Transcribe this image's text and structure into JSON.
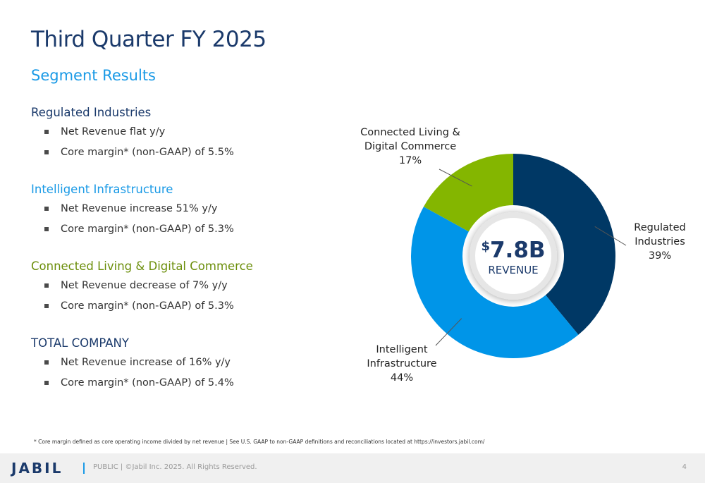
{
  "header": {
    "title": "Third Quarter FY 2025",
    "subtitle": "Segment Results"
  },
  "segments": [
    {
      "name": "Regulated Industries",
      "color": "#1b3a6b",
      "bullets": [
        "Net Revenue flat y/y",
        "Core margin* (non-GAAP) of 5.5%"
      ]
    },
    {
      "name": "Intelligent Infrastructure",
      "color": "#1a9ae6",
      "bullets": [
        "Net Revenue increase 51% y/y",
        "Core margin* (non-GAAP) of 5.3%"
      ]
    },
    {
      "name": "Connected Living & Digital Commerce",
      "color": "#6b8e0a",
      "bullets": [
        "Net Revenue decrease of 7% y/y",
        "Core margin* (non-GAAP) of 5.3%"
      ]
    },
    {
      "name": "TOTAL COMPANY",
      "color": "#1b3a6b",
      "bullets": [
        "Net Revenue increase of 16% y/y",
        "Core margin* (non-GAAP) of 5.4%"
      ]
    }
  ],
  "chart_data": {
    "type": "pie",
    "title": "",
    "center_label": {
      "currency": "$",
      "value": "7.8B",
      "caption": "REVENUE"
    },
    "slices": [
      {
        "label_lines": [
          "Regulated",
          "Industries"
        ],
        "value": 39,
        "value_label": "39%",
        "color": "#003865"
      },
      {
        "label_lines": [
          "Intelligent",
          "Infrastructure"
        ],
        "value": 44,
        "value_label": "44%",
        "color": "#0095e8"
      },
      {
        "label_lines": [
          "Connected Living &",
          "Digital Commerce"
        ],
        "value": 17,
        "value_label": "17%",
        "color": "#84b600"
      }
    ]
  },
  "footnote": "* Core margin defined as core operating income divided by net revenue  |   See U.S. GAAP to non-GAAP definitions and  reconciliations located at https://investors.jabil.com/",
  "footer": {
    "logo": "JABIL",
    "text": "PUBLIC  |  ©Jabil Inc. 2025. All Rights Reserved.",
    "page": "4"
  }
}
